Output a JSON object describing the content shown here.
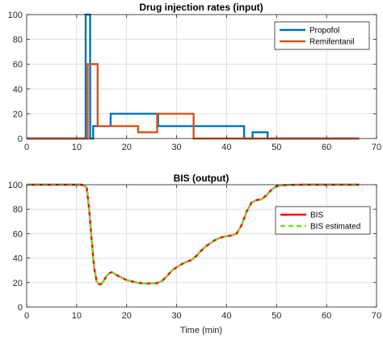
{
  "chart_data": [
    {
      "type": "line",
      "title": "Drug injection rates (input)",
      "xlabel": "",
      "ylabel": "",
      "xlim": [
        0,
        70
      ],
      "ylim": [
        0,
        100
      ],
      "xticks": [
        0,
        10,
        20,
        30,
        40,
        50,
        60,
        70
      ],
      "yticks": [
        0,
        20,
        40,
        60,
        80,
        100
      ],
      "grid": true,
      "legend_position": "top-right",
      "series": [
        {
          "name": "Propofol",
          "color": "#0072BD",
          "style": "solid",
          "x": [
            0,
            11.8,
            11.8,
            12.7,
            12.7,
            13.3,
            13.3,
            16.8,
            16.8,
            26.3,
            26.3,
            43.5,
            43.5,
            45.2,
            45.2,
            48.2,
            48.2,
            66.5
          ],
          "y": [
            0,
            0,
            100,
            100,
            0,
            0,
            10,
            10,
            20,
            20,
            10,
            10,
            0,
            0,
            5,
            5,
            0,
            0
          ]
        },
        {
          "name": "Remifentanil",
          "color": "#D95319",
          "style": "solid",
          "x": [
            0,
            12.2,
            12.2,
            14.2,
            14.2,
            22.3,
            22.3,
            26.1,
            26.1,
            33.4,
            33.4,
            66.5
          ],
          "y": [
            0,
            0,
            60,
            60,
            10,
            10,
            5,
            5,
            20,
            20,
            0,
            0
          ]
        }
      ]
    },
    {
      "type": "line",
      "title": "BIS (output)",
      "xlabel": "Time (min)",
      "ylabel": "",
      "xlim": [
        0,
        70
      ],
      "ylim": [
        0,
        100
      ],
      "xticks": [
        0,
        10,
        20,
        30,
        40,
        50,
        60,
        70
      ],
      "yticks": [
        0,
        20,
        40,
        60,
        80,
        100
      ],
      "grid": true,
      "legend_position": "right",
      "series": [
        {
          "name": "BIS",
          "color": "#FF0000",
          "style": "solid",
          "x": [
            0,
            11,
            12,
            12.5,
            13,
            13.5,
            14,
            14.5,
            15,
            15.5,
            16,
            16.5,
            17,
            17.5,
            18,
            19,
            20,
            21,
            22,
            23,
            24,
            25,
            26,
            27,
            28,
            29,
            30,
            31,
            32,
            33,
            34,
            35,
            36,
            37,
            38,
            39,
            40,
            41,
            42,
            43,
            44,
            45,
            46,
            47,
            48,
            49,
            50,
            51,
            52,
            55,
            60,
            66.5
          ],
          "y": [
            100,
            100,
            98,
            80,
            55,
            32,
            21,
            18.5,
            19,
            22,
            25.5,
            27.5,
            28.5,
            27.5,
            26,
            24,
            22,
            21,
            20,
            19.5,
            19.2,
            19.3,
            19.5,
            21,
            25,
            29.5,
            32.5,
            35,
            37,
            38.5,
            42,
            46.5,
            50,
            53,
            55.5,
            57,
            58,
            58.5,
            60,
            67,
            78,
            85.5,
            87.5,
            88.2,
            91.5,
            96,
            98.8,
            99.5,
            99.8,
            100,
            100,
            100
          ]
        },
        {
          "name": "BIS estimated",
          "color": "#77DD33",
          "style": "dashed",
          "x": [
            0,
            11,
            12,
            12.5,
            13,
            13.5,
            14,
            14.5,
            15,
            15.5,
            16,
            16.5,
            17,
            17.5,
            18,
            19,
            20,
            21,
            22,
            23,
            24,
            25,
            26,
            27,
            28,
            29,
            30,
            31,
            32,
            33,
            34,
            35,
            36,
            37,
            38,
            39,
            40,
            41,
            42,
            43,
            44,
            45,
            46,
            47,
            48,
            49,
            50,
            51,
            52,
            55,
            60,
            66.5
          ],
          "y": [
            100,
            100,
            98,
            80,
            55,
            32,
            21,
            18.5,
            19,
            22,
            25.5,
            27.5,
            28.5,
            27.5,
            26,
            24,
            22,
            21,
            20,
            19.5,
            19.2,
            19.3,
            19.5,
            21,
            25,
            29.5,
            32.5,
            35,
            37,
            38.5,
            42,
            46.5,
            50,
            53,
            55.5,
            57,
            58,
            58.5,
            60,
            67,
            78,
            85.5,
            87.5,
            88.2,
            91.5,
            96,
            98.8,
            99.5,
            99.8,
            100,
            100,
            100
          ]
        }
      ]
    }
  ]
}
